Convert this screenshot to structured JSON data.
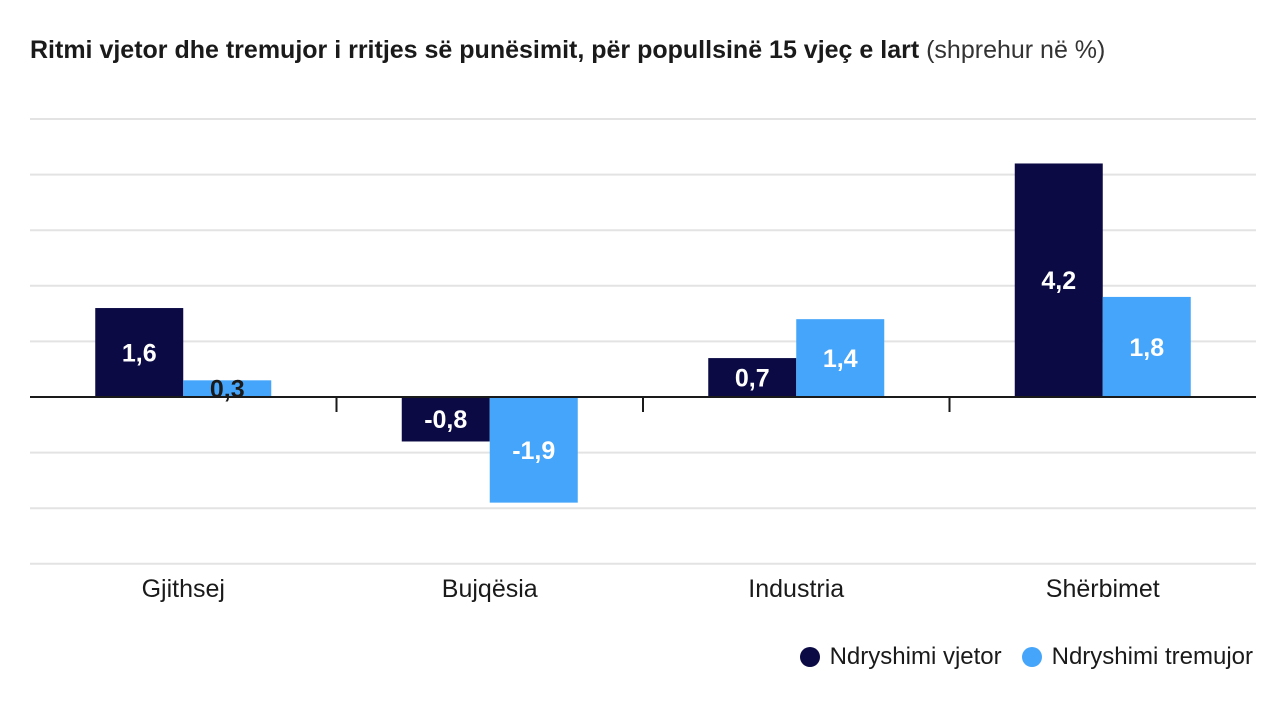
{
  "title": {
    "main": "Ritmi vjetor dhe tremujor i rritjes së punësimit, për popullsinë 15 vjeç e lart",
    "sub": "(shprehur në %)"
  },
  "chart_data": {
    "type": "bar",
    "title": "Ritmi vjetor dhe tremujor i rritjes së punësimit, për popullsinë 15 vjeç e lart",
    "subtitle": "(shprehur në %)",
    "categories": [
      "Gjithsej",
      "Bujqësia",
      "Industria",
      "Shërbimet"
    ],
    "series": [
      {
        "name": "Ndryshimi vjetor",
        "color": "#0b0a45",
        "values": [
          1.6,
          -0.8,
          0.7,
          4.2
        ],
        "labels": [
          "1,6",
          "-0,8",
          "0,7",
          "4,2"
        ]
      },
      {
        "name": "Ndryshimi tremujor",
        "color": "#45a5fa",
        "values": [
          0.3,
          -1.9,
          1.4,
          1.8
        ],
        "labels": [
          "0,3",
          "-1,9",
          "1,4",
          "1,8"
        ]
      }
    ],
    "ylim": [
      -3,
      5
    ],
    "grid": true,
    "legend": "bottom-right"
  }
}
